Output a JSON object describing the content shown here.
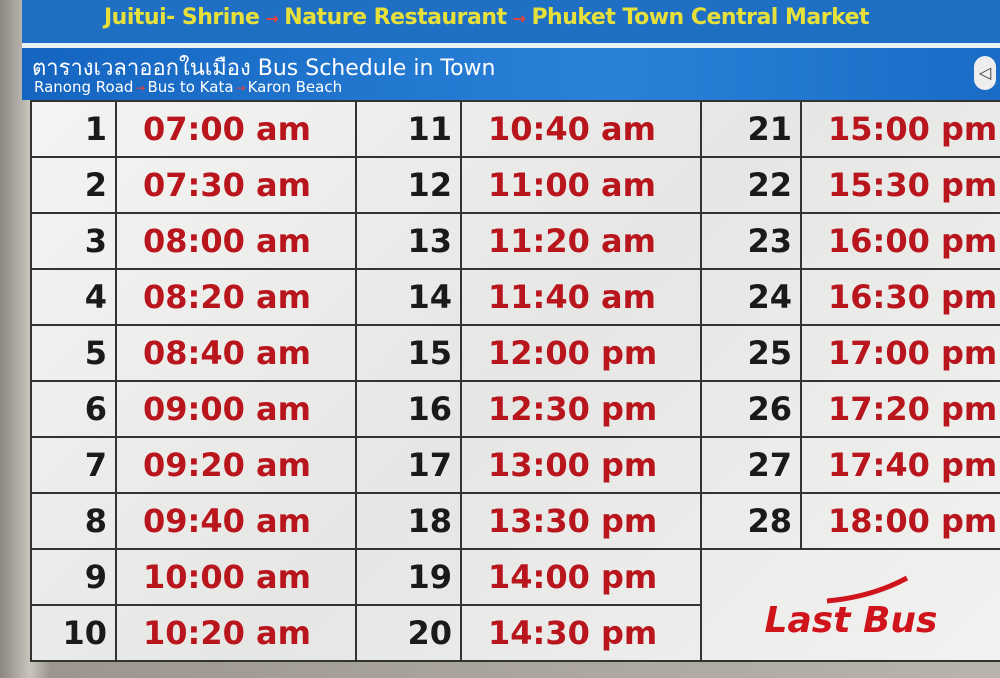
{
  "header": {
    "route": [
      "Juitui- Shrine",
      "Nature Restaurant",
      "Phuket Town Central Market"
    ],
    "title": "ตารางเวลาออกในเมือง Bus Schedule in Town",
    "subroute": [
      "Ranong Road",
      "Bus to Kata",
      "Karon Beach"
    ],
    "arrow": "→"
  },
  "schedule": [
    {
      "n": "1",
      "t": "07:00 am"
    },
    {
      "n": "2",
      "t": "07:30 am"
    },
    {
      "n": "3",
      "t": "08:00 am"
    },
    {
      "n": "4",
      "t": "08:20 am"
    },
    {
      "n": "5",
      "t": "08:40 am"
    },
    {
      "n": "6",
      "t": "09:00 am"
    },
    {
      "n": "7",
      "t": "09:20 am"
    },
    {
      "n": "8",
      "t": "09:40 am"
    },
    {
      "n": "9",
      "t": "10:00 am"
    },
    {
      "n": "10",
      "t": "10:20 am"
    },
    {
      "n": "11",
      "t": "10:40 am"
    },
    {
      "n": "12",
      "t": "11:00 am"
    },
    {
      "n": "13",
      "t": "11:20 am"
    },
    {
      "n": "14",
      "t": "11:40 am"
    },
    {
      "n": "15",
      "t": "12:00 pm"
    },
    {
      "n": "16",
      "t": "12:30 pm"
    },
    {
      "n": "17",
      "t": "13:00 pm"
    },
    {
      "n": "18",
      "t": "13:30 pm"
    },
    {
      "n": "19",
      "t": "14:00 pm"
    },
    {
      "n": "20",
      "t": "14:30 pm"
    },
    {
      "n": "21",
      "t": "15:00 pm"
    },
    {
      "n": "22",
      "t": "15:30 pm"
    },
    {
      "n": "23",
      "t": "16:00 pm"
    },
    {
      "n": "24",
      "t": "16:30 pm"
    },
    {
      "n": "25",
      "t": "17:00 pm"
    },
    {
      "n": "26",
      "t": "17:20 pm"
    },
    {
      "n": "27",
      "t": "17:40 pm"
    },
    {
      "n": "28",
      "t": "18:00 pm"
    }
  ],
  "last_bus": "Last Bus",
  "colors": {
    "time": "#b8151c",
    "number": "#1a1a1a",
    "banner": "#1f6fc4",
    "route_text": "#e8e03a"
  }
}
